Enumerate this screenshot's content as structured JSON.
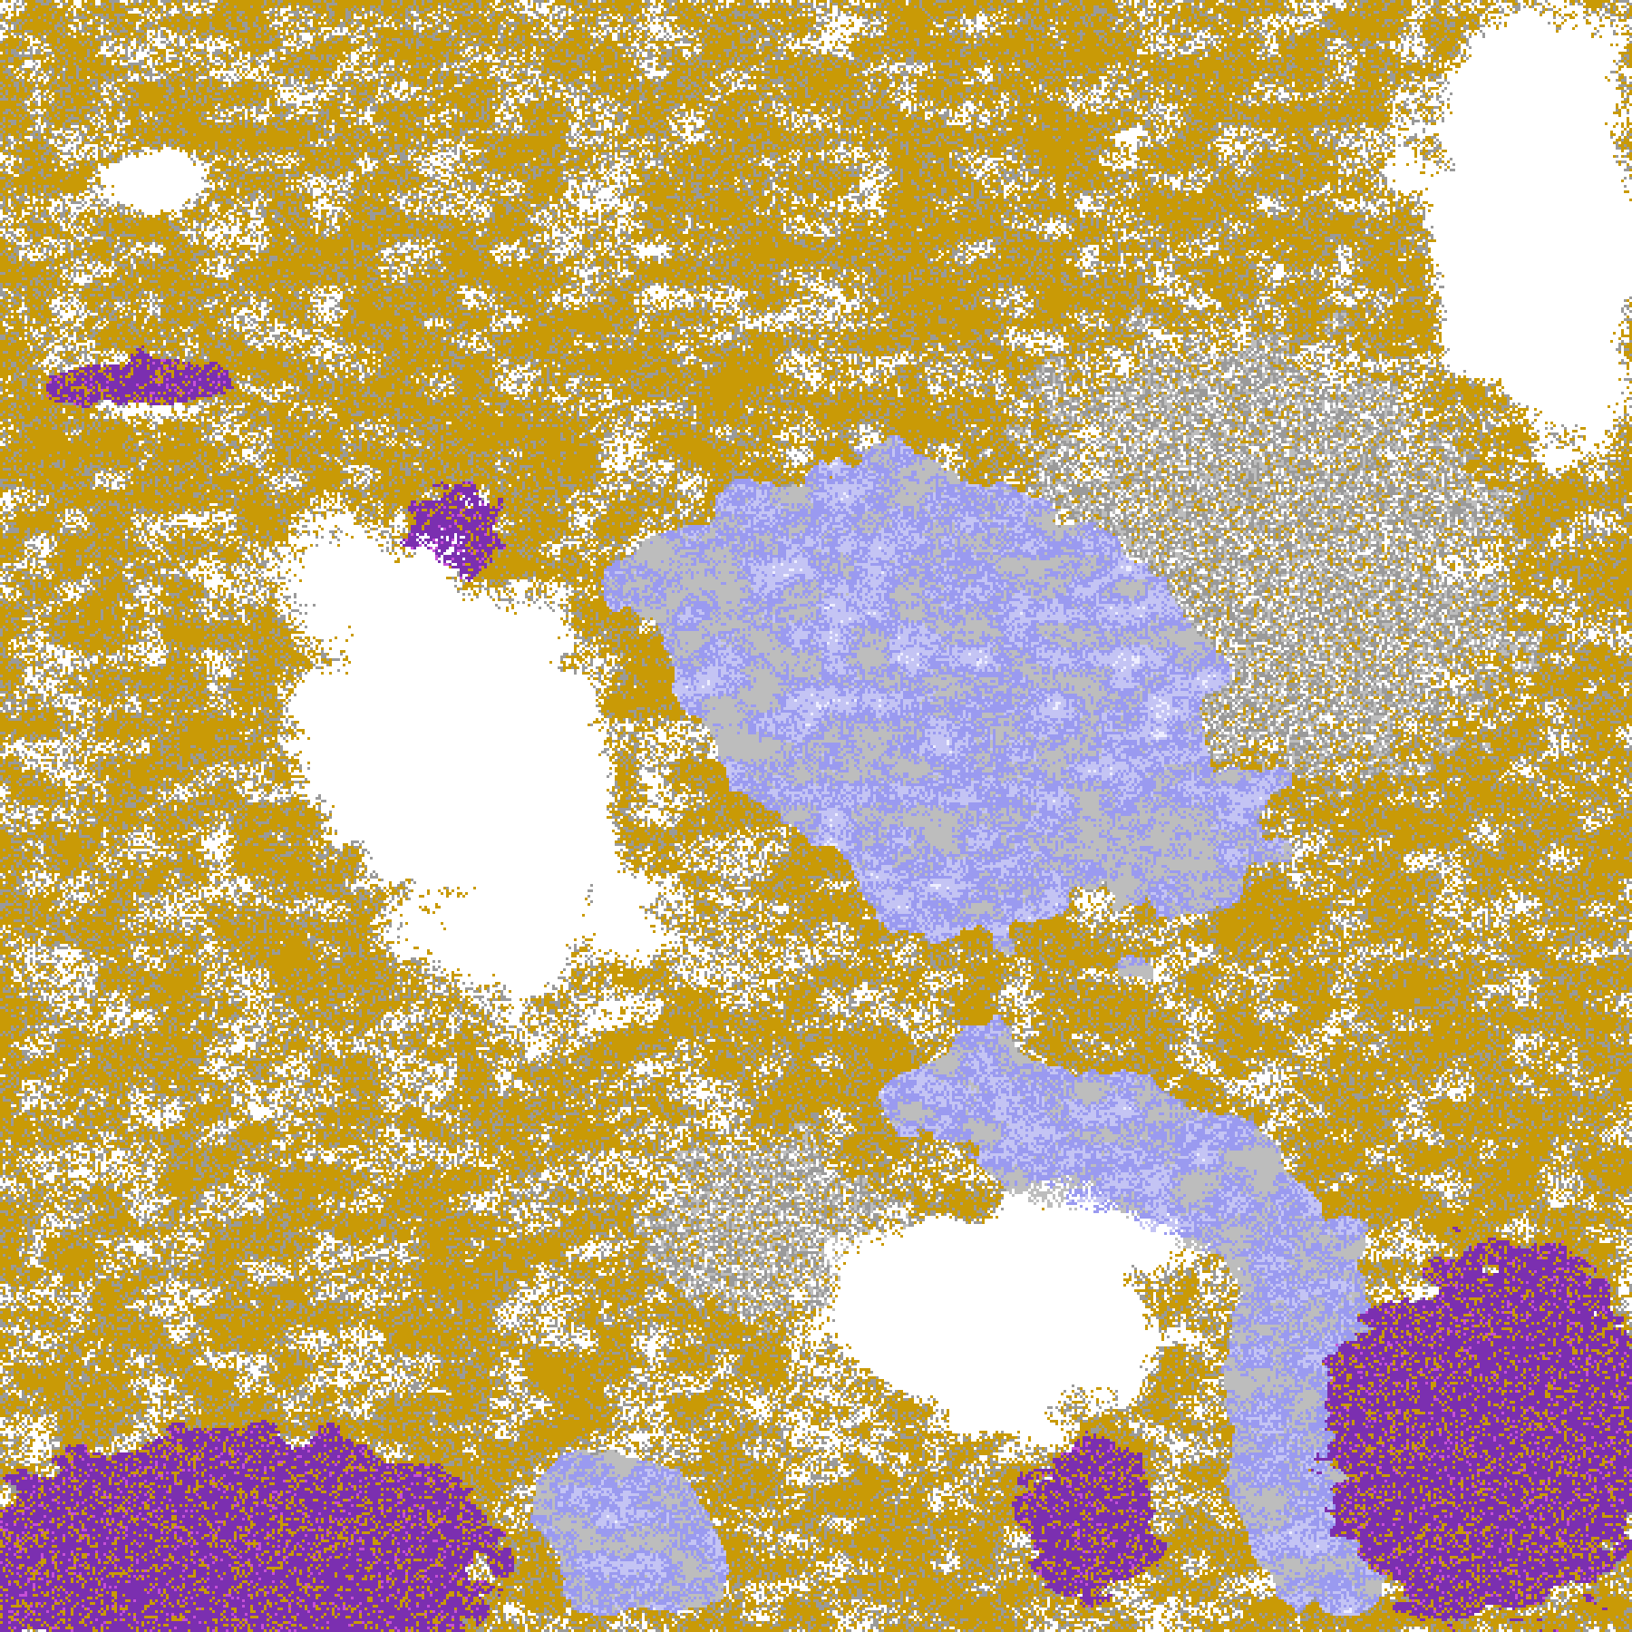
{
  "imagery": {
    "type": "false-color satellite cloud classification",
    "palette": {
      "clear": "#ffffff",
      "gold": "#c99a06",
      "gray": "#9a9a9a",
      "light_gray": "#bdbdbd",
      "lavender": "#c4c4f4",
      "periwinkle": "#9a9af0",
      "pale": "#eeeeff",
      "purple": "#7b2fb0",
      "magenta": "#c850d8"
    }
  }
}
